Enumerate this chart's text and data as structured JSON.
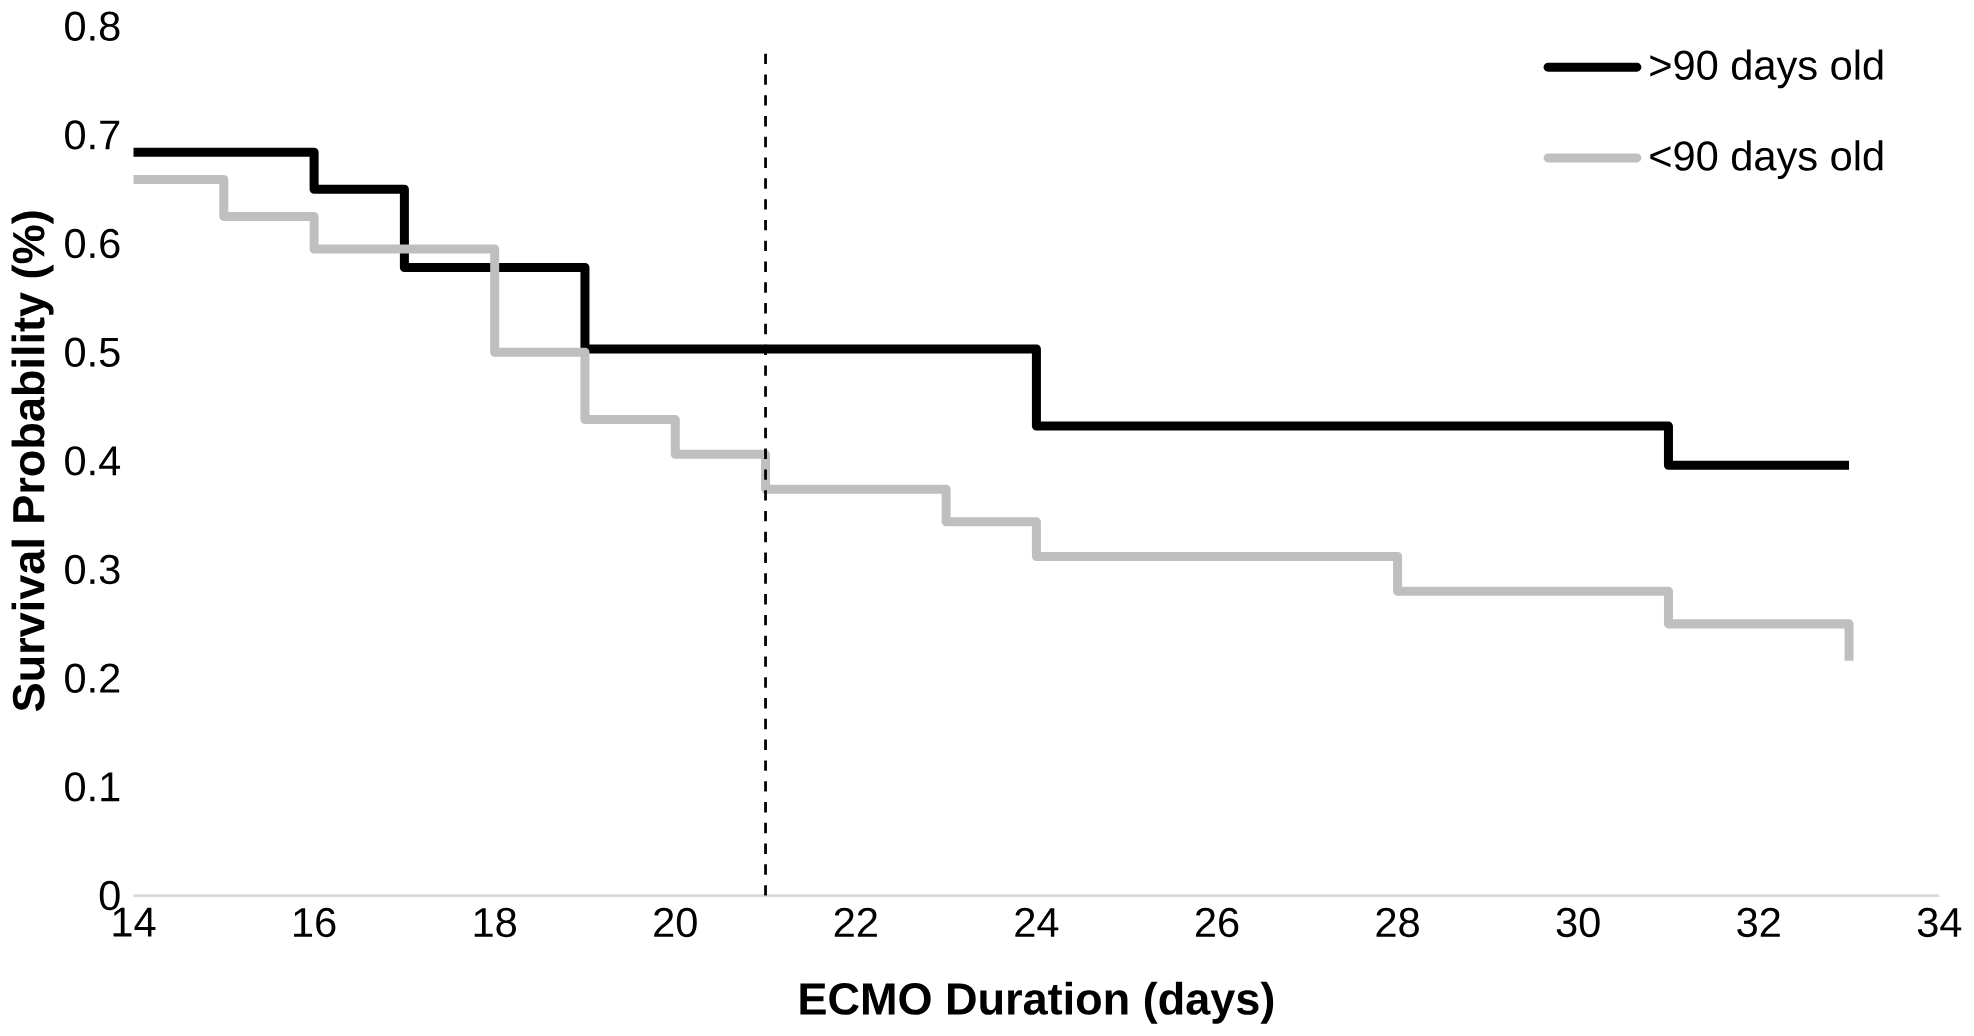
{
  "chart_data": {
    "type": "step",
    "xlabel": "ECMO Duration (days)",
    "ylabel": "Survival Probability (%)",
    "xlim": [
      14,
      34
    ],
    "xticks": [
      14,
      16,
      18,
      20,
      22,
      24,
      26,
      28,
      30,
      32,
      34
    ],
    "ylim": [
      0,
      0.8
    ],
    "yticks": [
      0,
      0.1,
      0.2,
      0.3,
      0.4,
      0.5,
      0.6,
      0.7,
      0.8
    ],
    "grid": false,
    "legend": "top right",
    "line_style": "solid",
    "marker": "none",
    "ref_lines": [
      {
        "axis": "x",
        "value": 21,
        "color": "#000000",
        "line_style": "dashed"
      }
    ],
    "series": [
      {
        "name": ">90 days old",
        "color": "#000000",
        "x": [
          14,
          16,
          17,
          19,
          24,
          31,
          33
        ],
        "values": [
          0.684,
          0.65,
          0.578,
          0.503,
          0.432,
          0.396,
          0.396
        ]
      },
      {
        "name": "<90 days old",
        "color": "#bfbfbf",
        "x": [
          14,
          15,
          16,
          18,
          19,
          20,
          21,
          23,
          24,
          28,
          31,
          33
        ],
        "values": [
          0.659,
          0.625,
          0.595,
          0.5,
          0.438,
          0.406,
          0.374,
          0.344,
          0.312,
          0.28,
          0.25,
          0.216
        ]
      }
    ]
  }
}
